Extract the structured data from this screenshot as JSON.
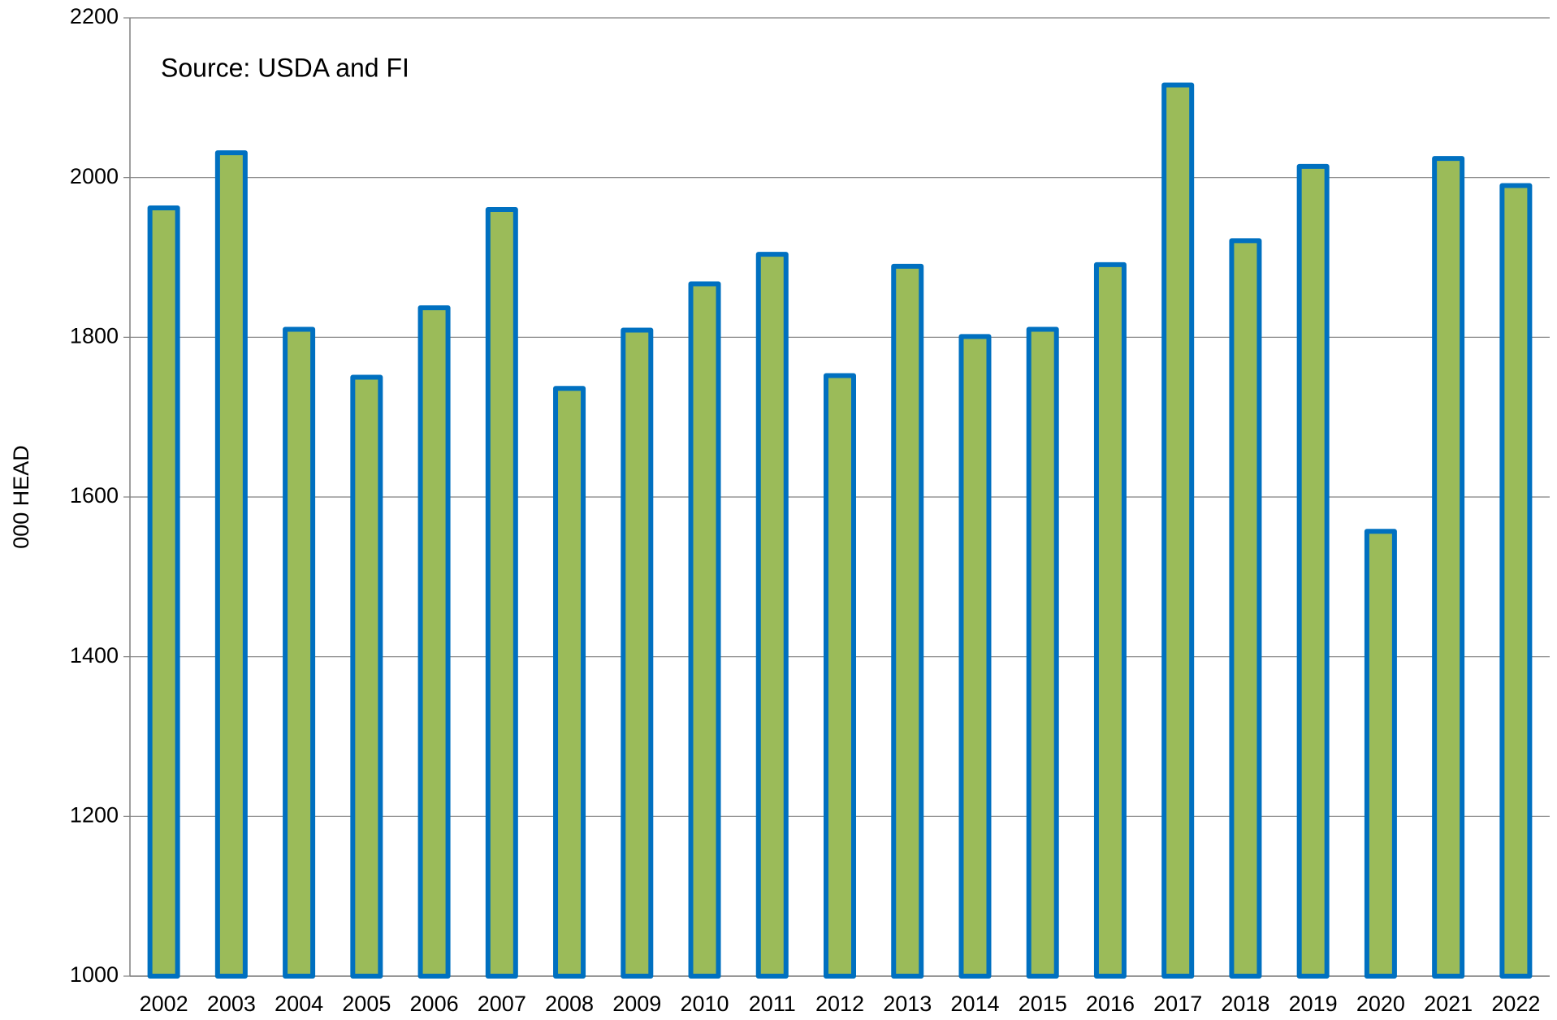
{
  "chart_data": {
    "type": "bar",
    "annotation": "Source: USDA and FI",
    "y_label": "000 HEAD",
    "categories": [
      "2002",
      "2003",
      "2004",
      "2005",
      "2006",
      "2007",
      "2008",
      "2009",
      "2010",
      "2011",
      "2012",
      "2013",
      "2014",
      "2015",
      "2016",
      "2017",
      "2018",
      "2019",
      "2020",
      "2021",
      "2022"
    ],
    "values": [
      1962,
      2031,
      1810,
      1750,
      1837,
      1960,
      1736,
      1809,
      1867,
      1904,
      1752,
      1889,
      1801,
      1810,
      1891,
      2116,
      1921,
      2014,
      1557,
      2024,
      1990
    ],
    "color": "#9bbb59",
    "edge_color": "#0070c0",
    "ylim": [
      1000,
      2200
    ],
    "yticks": [
      1000,
      1200,
      1400,
      1600,
      1800,
      2000,
      2200
    ],
    "grid": true
  }
}
